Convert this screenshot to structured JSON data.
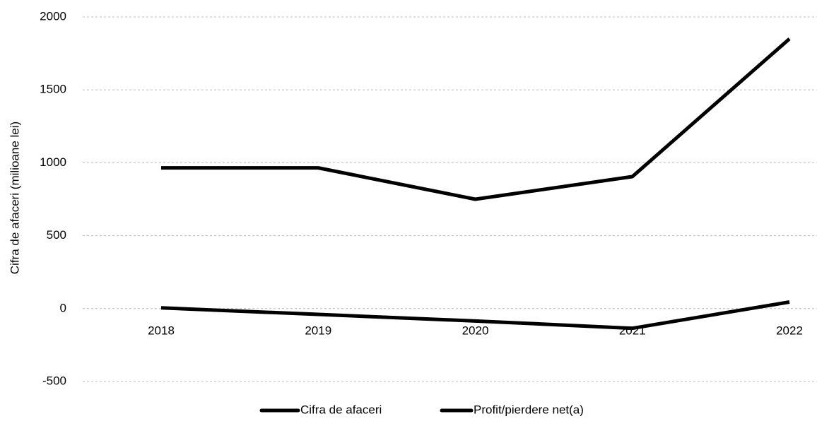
{
  "chart_data": {
    "type": "line",
    "y_label": "Cifra de afaceri (milioane lei)",
    "categories": [
      "2018",
      "2019",
      "2020",
      "2021",
      "2022"
    ],
    "series": [
      {
        "name": "Cifra de afaceri",
        "color": "#000000",
        "values": [
          965,
          965,
          750,
          905,
          1850
        ]
      },
      {
        "name": "Profit/pierdere net(a)",
        "color": "#000000",
        "values": [
          5,
          -40,
          -85,
          -135,
          45
        ]
      }
    ],
    "ylim": [
      -500,
      2000
    ],
    "yticks": [
      -500,
      0,
      500,
      1000,
      1500,
      2000
    ],
    "grid": true
  }
}
